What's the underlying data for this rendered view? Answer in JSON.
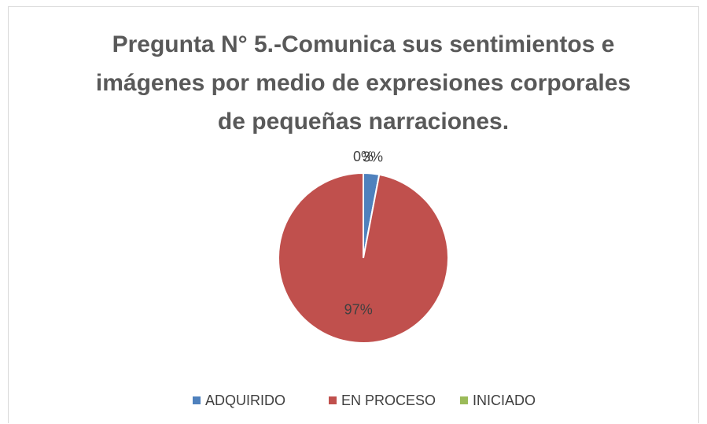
{
  "chart_data": {
    "type": "pie",
    "title": "Pregunta N° 5.-Comunica sus sentimientos e imágenes por medio de expresiones corporales de pequeñas narraciones.",
    "categories": [
      "ADQUIRIDO",
      "EN PROCESO",
      "INICIADO"
    ],
    "values": [
      3,
      97,
      0
    ],
    "value_labels": [
      "3%",
      "97%",
      "0%"
    ],
    "colors": [
      "#4f81bd",
      "#c0504d",
      "#9bbb59"
    ],
    "legend": "bottom"
  }
}
